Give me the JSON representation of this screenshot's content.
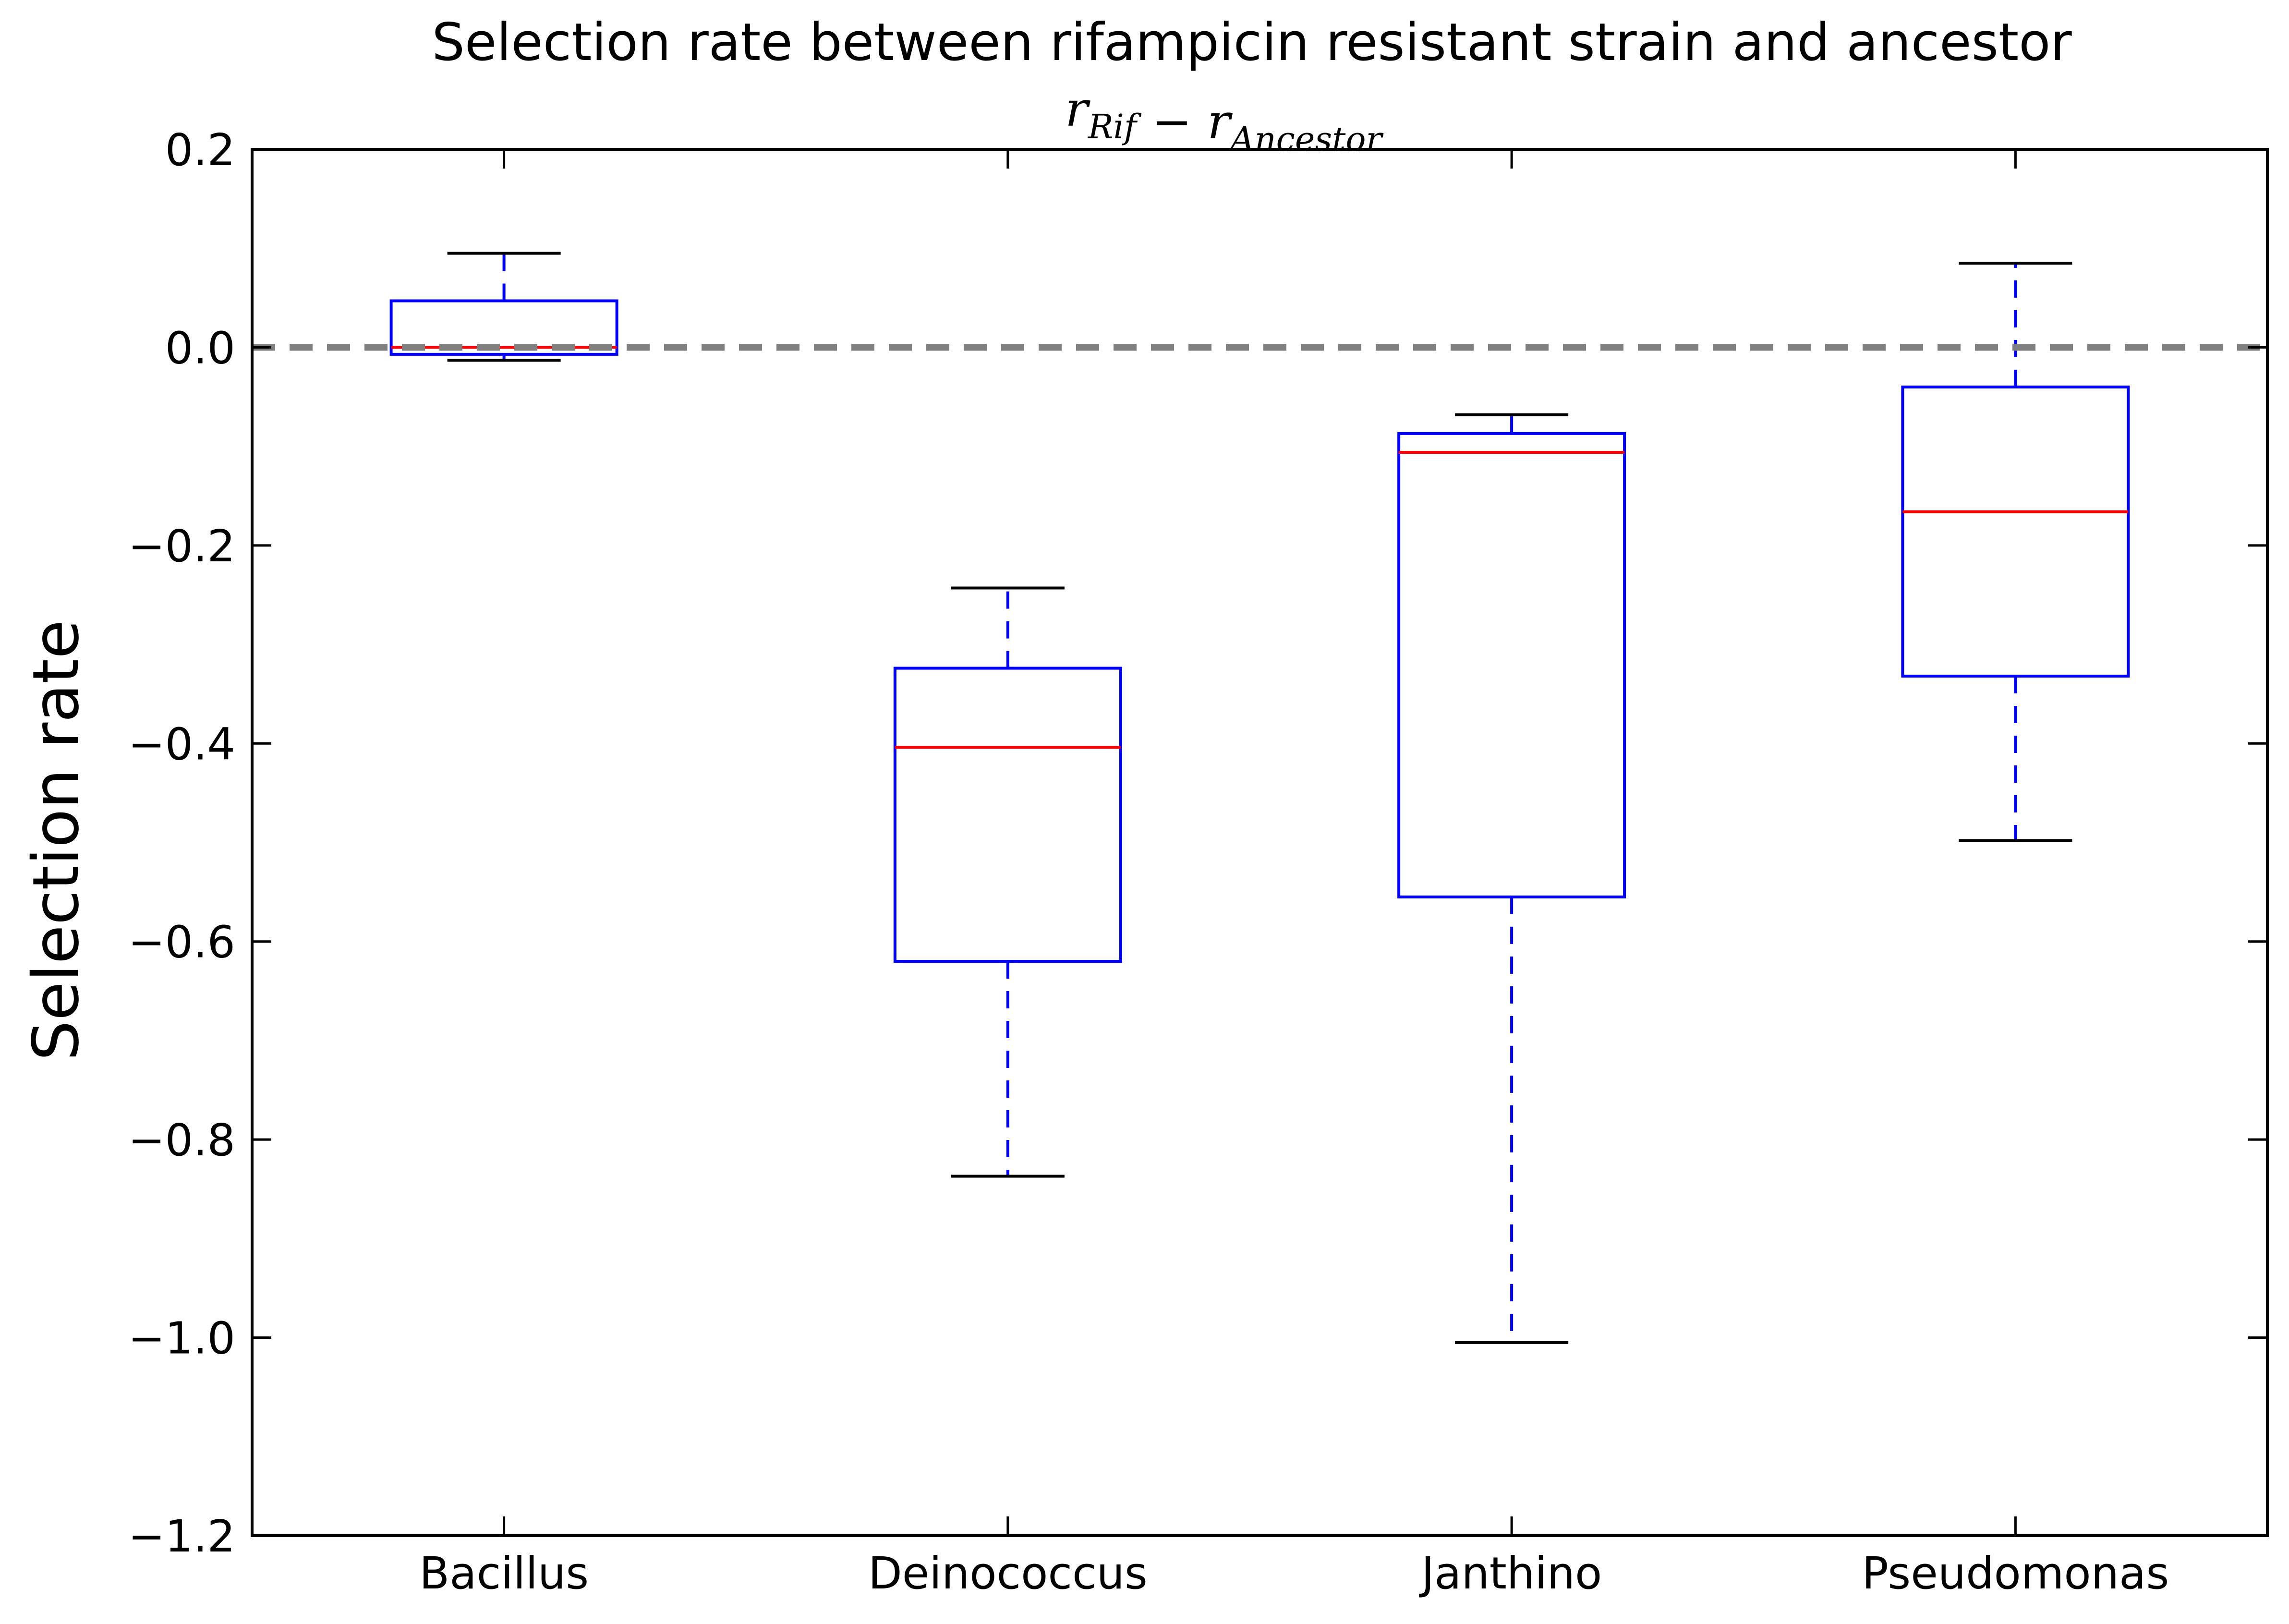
{
  "chart_data": {
    "type": "box",
    "title": "Selection rate between rifampicin resistant strain and ancestor",
    "subtitle": {
      "parts": [
        {
          "text": "r",
          "sub": "Rif"
        },
        {
          "text": " − ",
          "sub": ""
        },
        {
          "text": "r",
          "sub": "Ancestor"
        }
      ]
    },
    "xlabel": "",
    "ylabel": "Selection rate",
    "ylim": [
      -1.2,
      0.2
    ],
    "yticks": [
      0.2,
      0.0,
      -0.2,
      -0.4,
      -0.6,
      -0.8,
      -1.0,
      -1.2
    ],
    "ytick_labels": [
      "0.2",
      "0.0",
      "−0.2",
      "−0.4",
      "−0.6",
      "−0.8",
      "−1.0",
      "−1.2"
    ],
    "categories": [
      "Bacillus",
      "Deinococcus",
      "Janthino",
      "Pseudomonas"
    ],
    "boxes": [
      {
        "category": "Bacillus",
        "whisker_low": -0.013,
        "q1": -0.007,
        "median": 0.0,
        "q3": 0.047,
        "whisker_high": 0.095
      },
      {
        "category": "Deinococcus",
        "whisker_low": -0.837,
        "q1": -0.62,
        "median": -0.404,
        "q3": -0.324,
        "whisker_high": -0.243
      },
      {
        "category": "Janthino",
        "whisker_low": -1.005,
        "q1": -0.555,
        "median": -0.106,
        "q3": -0.087,
        "whisker_high": -0.068
      },
      {
        "category": "Pseudomonas",
        "whisker_low": -0.498,
        "q1": -0.332,
        "median": -0.166,
        "q3": -0.04,
        "whisker_high": 0.085
      }
    ],
    "reference_line": {
      "y": 0.0,
      "style": "dashed",
      "color": "#808080"
    },
    "grid": false,
    "colors": {
      "box": "#0000ff",
      "median": "#ff0000",
      "whisker": "#0000ff",
      "cap": "#000000",
      "axes": "#000000"
    }
  }
}
